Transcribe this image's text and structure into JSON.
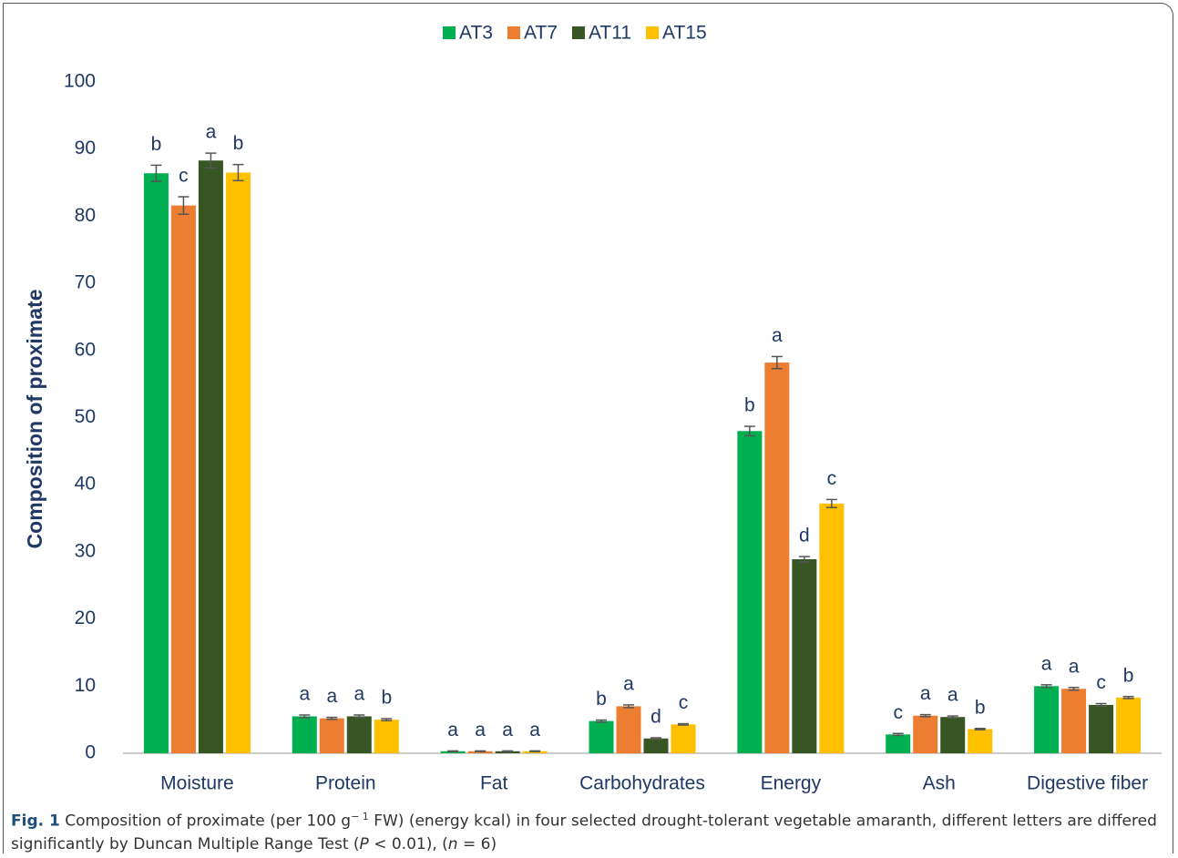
{
  "chart_data": {
    "type": "bar",
    "y_label": "Composition of proximate",
    "categories": [
      "Moisture",
      "Protein",
      "Fat",
      "Carbohydrates",
      "Energy",
      "Ash",
      "Digestive fiber"
    ],
    "series": [
      {
        "name": "AT3",
        "color": "#00b050",
        "values": [
          86.4,
          5.5,
          0.3,
          4.8,
          48.0,
          2.8,
          10.0
        ],
        "errors": [
          1.2,
          0.2,
          0.05,
          0.15,
          0.7,
          0.15,
          0.2
        ],
        "letters": [
          "b",
          "a",
          "a",
          "b",
          "b",
          "c",
          "a"
        ]
      },
      {
        "name": "AT7",
        "color": "#ed7d31",
        "values": [
          81.6,
          5.2,
          0.3,
          7.0,
          58.2,
          5.6,
          9.6
        ],
        "errors": [
          1.3,
          0.15,
          0.05,
          0.2,
          0.9,
          0.15,
          0.2
        ],
        "letters": [
          "c",
          "a",
          "a",
          "a",
          "a",
          "a",
          "a"
        ]
      },
      {
        "name": "AT11",
        "color": "#375623",
        "values": [
          88.3,
          5.5,
          0.3,
          2.2,
          28.9,
          5.4,
          7.2
        ],
        "errors": [
          1.1,
          0.2,
          0.05,
          0.1,
          0.4,
          0.15,
          0.2
        ],
        "letters": [
          "a",
          "a",
          "a",
          "d",
          "d",
          "a",
          "c"
        ]
      },
      {
        "name": "AT15",
        "color": "#ffc000",
        "values": [
          86.5,
          5.0,
          0.3,
          4.3,
          37.2,
          3.6,
          8.3
        ],
        "errors": [
          1.2,
          0.15,
          0.05,
          0.1,
          0.6,
          0.1,
          0.15
        ],
        "letters": [
          "b",
          "b",
          "a",
          "c",
          "c",
          "b",
          "b"
        ]
      }
    ],
    "ylim": [
      0,
      100
    ],
    "yticks": [
      0,
      10,
      20,
      30,
      40,
      50,
      60,
      70,
      80,
      90,
      100
    ],
    "grid": false,
    "legend": "top",
    "caption": {
      "label": "Fig. 1",
      "text1": " Composition of proximate (per 100 g",
      "sup": "− 1",
      "text2": " FW) (energy kcal) in four selected drought-tolerant vegetable amaranth, different letters are differed significantly by Duncan Multiple Range Test (",
      "p": "P",
      "text3": " < 0.01), (",
      "n": "n",
      "text4": " = 6)"
    }
  }
}
